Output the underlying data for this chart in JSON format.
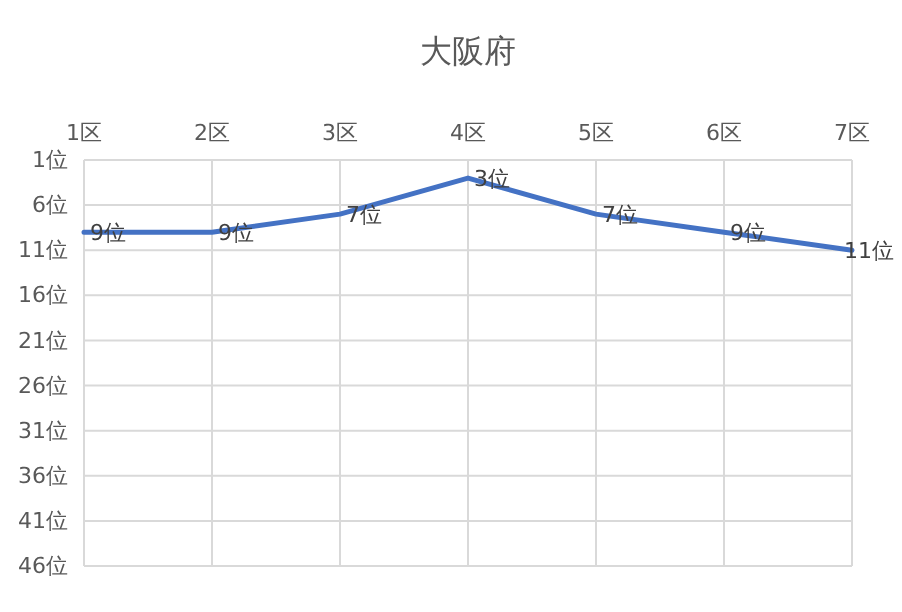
{
  "chart_data": {
    "type": "line",
    "title": "大阪府",
    "categories": [
      "1区",
      "2区",
      "3区",
      "4区",
      "5区",
      "6区",
      "7区"
    ],
    "series": [
      {
        "color": "#4472c4",
        "values": [
          9,
          9,
          7,
          3,
          7,
          9,
          11
        ],
        "value_labels": [
          "9位",
          "9位",
          "7位",
          "3位",
          "7位",
          "9位",
          "11位"
        ]
      }
    ],
    "ylim": [
      46,
      1
    ],
    "yticks": [
      {
        "value": 1,
        "label": "1位"
      },
      {
        "value": 6,
        "label": "6位"
      },
      {
        "value": 11,
        "label": "11位"
      },
      {
        "value": 16,
        "label": "16位"
      },
      {
        "value": 21,
        "label": "21位"
      },
      {
        "value": 26,
        "label": "26位"
      },
      {
        "value": 31,
        "label": "31位"
      },
      {
        "value": 36,
        "label": "36位"
      },
      {
        "value": 41,
        "label": "41位"
      },
      {
        "value": 46,
        "label": "46位"
      }
    ],
    "grid": true,
    "marker": "none",
    "line_style": "solid"
  }
}
